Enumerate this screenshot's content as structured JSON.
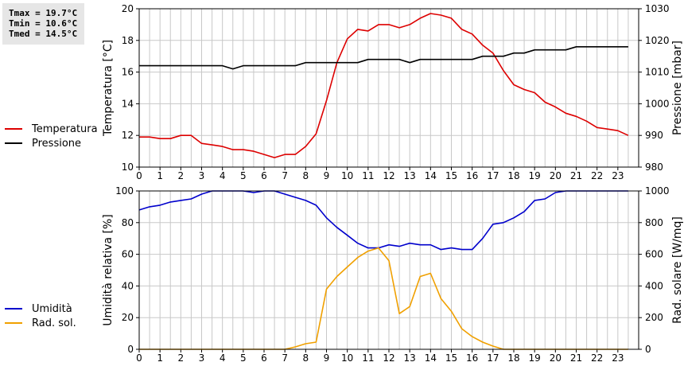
{
  "stats": {
    "tmax": "Tmax = 19.7°C",
    "tmin": "Tmin = 10.6°C",
    "tmed": "Tmed = 14.5°C"
  },
  "colors": {
    "temperature": "#dd0000",
    "pressure": "#000000",
    "humidity": "#0000cc",
    "radiation": "#f0a000",
    "grid": "#c8c8c8"
  },
  "chart_data": [
    {
      "type": "line",
      "xlim": [
        0,
        24
      ],
      "xticks": [
        "0",
        "1",
        "2",
        "3",
        "4",
        "5",
        "6",
        "7",
        "8",
        "9",
        "10",
        "11",
        "12",
        "13",
        "14",
        "15",
        "16",
        "17",
        "18",
        "19",
        "20",
        "21",
        "22",
        "23"
      ],
      "ylabel": "Temperatura [°C]",
      "ylim": [
        10,
        20
      ],
      "yticks": [
        "10",
        "12",
        "14",
        "16",
        "18",
        "20"
      ],
      "y2label": "Pressione [mbar]",
      "y2lim": [
        980,
        1030
      ],
      "y2ticks": [
        "980",
        "990",
        "1000",
        "1010",
        "1020",
        "1030"
      ],
      "legend": [
        "Temperatura",
        "Pressione"
      ],
      "grid": true,
      "series": [
        {
          "name": "Temperatura",
          "axis": "left",
          "x": [
            0,
            0.5,
            1,
            1.5,
            2,
            2.5,
            3,
            3.5,
            4,
            4.5,
            5,
            5.5,
            6,
            6.5,
            7,
            7.5,
            8,
            8.5,
            9,
            9.5,
            10,
            10.5,
            11,
            11.5,
            12,
            12.5,
            13,
            13.5,
            14,
            14.5,
            15,
            15.5,
            16,
            16.5,
            17,
            17.5,
            18,
            18.5,
            19,
            19.5,
            20,
            20.5,
            21,
            21.5,
            22,
            22.5,
            23,
            23.5
          ],
          "values": [
            11.9,
            11.9,
            11.8,
            11.8,
            12.0,
            12.0,
            11.5,
            11.4,
            11.3,
            11.1,
            11.1,
            11.0,
            10.8,
            10.6,
            10.8,
            10.8,
            11.3,
            12.1,
            14.2,
            16.6,
            18.1,
            18.7,
            18.6,
            19.0,
            19.0,
            18.8,
            19.0,
            19.4,
            19.7,
            19.6,
            19.4,
            18.7,
            18.4,
            17.7,
            17.2,
            16.1,
            15.2,
            14.9,
            14.7,
            14.1,
            13.8,
            13.4,
            13.2,
            12.9,
            12.5,
            12.4,
            12.3,
            12.0
          ]
        },
        {
          "name": "Pressione",
          "axis": "right",
          "x": [
            0,
            0.5,
            1,
            1.5,
            2,
            2.5,
            3,
            3.5,
            4,
            4.5,
            5,
            5.5,
            6,
            6.5,
            7,
            7.5,
            8,
            8.5,
            9,
            9.5,
            10,
            10.5,
            11,
            11.5,
            12,
            12.5,
            13,
            13.5,
            14,
            14.5,
            15,
            15.5,
            16,
            16.5,
            17,
            17.5,
            18,
            18.5,
            19,
            19.5,
            20,
            20.5,
            21,
            21.5,
            22,
            22.5,
            23,
            23.5
          ],
          "values": [
            1012,
            1012,
            1012,
            1012,
            1012,
            1012,
            1012,
            1012,
            1012,
            1011,
            1012,
            1012,
            1012,
            1012,
            1012,
            1012,
            1013,
            1013,
            1013,
            1013,
            1013,
            1013,
            1014,
            1014,
            1014,
            1014,
            1013,
            1014,
            1014,
            1014,
            1014,
            1014,
            1014,
            1015,
            1015,
            1015,
            1016,
            1016,
            1017,
            1017,
            1017,
            1017,
            1018,
            1018,
            1018,
            1018,
            1018,
            1018
          ]
        }
      ]
    },
    {
      "type": "line",
      "xlim": [
        0,
        24
      ],
      "xticks": [
        "0",
        "1",
        "2",
        "3",
        "4",
        "5",
        "6",
        "7",
        "8",
        "9",
        "10",
        "11",
        "12",
        "13",
        "14",
        "15",
        "16",
        "17",
        "18",
        "19",
        "20",
        "21",
        "22",
        "23"
      ],
      "ylabel": "Umidità relativa [%]",
      "ylim": [
        0,
        100
      ],
      "yticks": [
        "0",
        "20",
        "40",
        "60",
        "80",
        "100"
      ],
      "y2label": "Rad. solare [W/mq]",
      "y2lim": [
        0,
        1000
      ],
      "y2ticks": [
        "0",
        "200",
        "400",
        "600",
        "800",
        "1000"
      ],
      "legend": [
        "Umidità",
        "Rad. sol."
      ],
      "grid": true,
      "series": [
        {
          "name": "Umidità",
          "axis": "left",
          "x": [
            0,
            0.5,
            1,
            1.5,
            2,
            2.5,
            3,
            3.5,
            4,
            4.5,
            5,
            5.5,
            6,
            6.5,
            7,
            7.5,
            8,
            8.5,
            9,
            9.5,
            10,
            10.5,
            11,
            11.5,
            12,
            12.5,
            13,
            13.5,
            14,
            14.5,
            15,
            15.5,
            16,
            16.5,
            17,
            17.5,
            18,
            18.5,
            19,
            19.5,
            20,
            20.5,
            21,
            21.5,
            22,
            22.5,
            23,
            23.5
          ],
          "values": [
            88,
            90,
            91,
            93,
            94,
            95,
            98,
            100,
            100,
            100,
            100,
            99,
            100,
            100,
            98,
            96,
            94,
            91,
            83,
            77,
            72,
            67,
            64,
            64,
            66,
            65,
            67,
            66,
            66,
            63,
            64,
            63,
            63,
            70,
            79,
            80,
            83,
            87,
            94,
            95,
            99,
            100,
            100,
            100,
            100,
            100,
            100,
            100
          ]
        },
        {
          "name": "Rad. sol.",
          "axis": "right",
          "x": [
            0,
            0.5,
            1,
            1.5,
            2,
            2.5,
            3,
            3.5,
            4,
            4.5,
            5,
            5.5,
            6,
            6.5,
            7,
            7.5,
            8,
            8.5,
            9,
            9.5,
            10,
            10.5,
            11,
            11.5,
            12,
            12.5,
            13,
            13.5,
            14,
            14.5,
            15,
            15.5,
            16,
            16.5,
            17,
            17.5,
            18,
            18.5,
            19,
            19.5,
            20,
            20.5,
            21,
            21.5,
            22,
            22.5,
            23,
            23.5
          ],
          "values": [
            0,
            0,
            0,
            0,
            0,
            0,
            0,
            0,
            0,
            0,
            0,
            0,
            0,
            0,
            0,
            15,
            35,
            45,
            380,
            460,
            520,
            580,
            620,
            640,
            560,
            225,
            270,
            460,
            480,
            320,
            240,
            130,
            80,
            45,
            20,
            0,
            0,
            0,
            0,
            0,
            0,
            0,
            0,
            0,
            0,
            0,
            0,
            0
          ]
        }
      ]
    }
  ]
}
